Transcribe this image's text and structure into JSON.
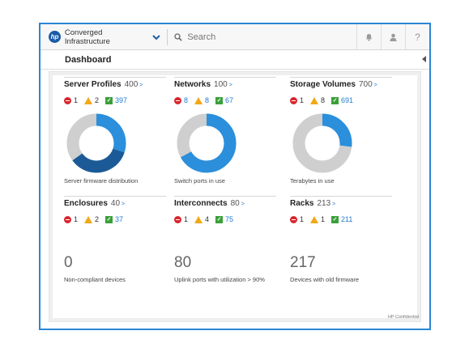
{
  "app": {
    "name": "Converged Infrastructure",
    "logo_text": "hp"
  },
  "search": {
    "placeholder": "Search"
  },
  "icons": {
    "notifications": "bell-icon",
    "user": "user-icon",
    "help": "help-icon",
    "help_glyph": "?"
  },
  "page": {
    "title": "Dashboard"
  },
  "colors": {
    "accent": "#1f7bd0",
    "donut_dark": "#1b5a97",
    "donut_blue": "#2b8fdb",
    "donut_gray": "#cfcfcf",
    "critical": "#d9262c",
    "warning": "#f2a816",
    "ok": "#3aa03a"
  },
  "panels": [
    {
      "name": "Server Profiles",
      "count": "400",
      "arrow": ">",
      "status": {
        "critical": "1",
        "warning": "2",
        "ok": "397"
      },
      "donut": [
        {
          "value": 0.3,
          "color": "#2b8fdb"
        },
        {
          "value": 0.35,
          "color": "#1b5a97"
        },
        {
          "value": 0.35,
          "color": "#cfcfcf"
        }
      ],
      "caption": "Server firmware distribution"
    },
    {
      "name": "Networks",
      "count": "100",
      "arrow": ">",
      "status": {
        "critical": "8",
        "warning": "8",
        "ok": "67"
      },
      "donut": [
        {
          "value": 0.67,
          "color": "#2b8fdb"
        },
        {
          "value": 0.33,
          "color": "#cfcfcf"
        }
      ],
      "caption": "Switch ports in use"
    },
    {
      "name": "Storage Volumes",
      "count": "700",
      "arrow": ">",
      "status": {
        "critical": "1",
        "warning": "8",
        "ok": "691"
      },
      "donut": [
        {
          "value": 0.27,
          "color": "#2b8fdb"
        },
        {
          "value": 0.73,
          "color": "#cfcfcf"
        }
      ],
      "caption": "Terabytes in use"
    },
    {
      "name": "Enclosures",
      "count": "40",
      "arrow": ">",
      "status": {
        "critical": "1",
        "warning": "2",
        "ok": "37"
      },
      "big_value": "0",
      "caption": "Non-compliant devices"
    },
    {
      "name": "Interconnects",
      "count": "80",
      "arrow": ">",
      "status": {
        "critical": "1",
        "warning": "4",
        "ok": "75"
      },
      "big_value": "80",
      "caption": "Uplink ports with utilization > 90%"
    },
    {
      "name": "Racks",
      "count": "213",
      "arrow": ">",
      "status": {
        "critical": "1",
        "warning": "1",
        "ok": "211"
      },
      "big_value": "217",
      "caption": "Devices with old firmware"
    }
  ],
  "footer": {
    "confidential": "HP Confidential"
  }
}
